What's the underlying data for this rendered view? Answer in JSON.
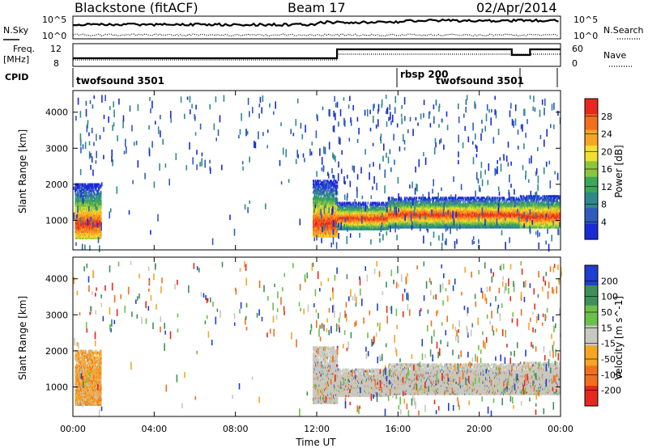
{
  "header": {
    "radar": "Blackstone (fitACF)",
    "beam": "Beam 17",
    "date": "02/Apr/2014"
  },
  "top_panels": {
    "nsky_label": "N.Sky",
    "nsearch_label": "N.Search",
    "count_ticks": [
      "10^5",
      "10^0"
    ],
    "freq_label_1": "Freq.",
    "freq_label_2": "[MHz]",
    "freq_ticks": [
      "12",
      "8"
    ],
    "nave_label": "Nave",
    "nave_ticks": [
      "60",
      "0"
    ],
    "cpid_label": "CPID"
  },
  "cpid_segments": [
    {
      "name": "twofsound 3501",
      "start": 0,
      "end": 16
    },
    {
      "name": "rbsp 200",
      "start": 16,
      "end": 16
    },
    {
      "name": "twofsound 3501",
      "start": 16,
      "end": 24
    }
  ],
  "colors": {
    "power_scale": [
      "#1a2bd6",
      "#2f5bbf",
      "#2e8a8a",
      "#3fa55a",
      "#8cc63f",
      "#f0e030",
      "#f5a623",
      "#f07020",
      "#e8281e"
    ],
    "velocity_scale": [
      "#1f3fd0",
      "#3f8f5a",
      "#6cc04a",
      "#c8c8c0",
      "#f5a623",
      "#f07020",
      "#e8281e"
    ]
  },
  "chart_data": [
    {
      "type": "heatmap",
      "name": "power",
      "xlabel": "Time UT",
      "ylabel": "Slant Range [km]",
      "xlim": [
        0,
        24
      ],
      "ylim": [
        180,
        4600
      ],
      "xticks": [
        "00:00",
        "04:00",
        "08:00",
        "12:00",
        "16:00",
        "20:00",
        "00:00"
      ],
      "yticks": [
        1000,
        2000,
        3000,
        4000
      ],
      "colorbar": {
        "label": "Power [dB]",
        "ticks": [
          4,
          8,
          12,
          16,
          20,
          24,
          28
        ],
        "range": [
          0,
          30
        ]
      },
      "bands": [
        {
          "t_start": 0.1,
          "t_end": 1.4,
          "r_low": 600,
          "r_peak": 900,
          "r_high": 2000
        },
        {
          "t_start": 11.8,
          "t_end": 13.0,
          "r_low": 650,
          "r_peak": 900,
          "r_high": 2100
        },
        {
          "t_start": 13.0,
          "t_end": 15.5,
          "r_low": 850,
          "r_peak": 1050,
          "r_high": 1500
        },
        {
          "t_start": 15.5,
          "t_end": 22.0,
          "r_low": 900,
          "r_peak": 1150,
          "r_high": 1650
        },
        {
          "t_start": 22.0,
          "t_end": 24.0,
          "r_low": 900,
          "r_peak": 1100,
          "r_high": 1700
        }
      ]
    },
    {
      "type": "heatmap",
      "name": "velocity",
      "xlabel": "Time UT",
      "ylabel": "Slant Range [km]",
      "xlim": [
        0,
        24
      ],
      "ylim": [
        180,
        4600
      ],
      "xticks": [
        "00:00",
        "04:00",
        "08:00",
        "12:00",
        "16:00",
        "20:00",
        "00:00"
      ],
      "yticks": [
        1000,
        2000,
        3000,
        4000
      ],
      "colorbar": {
        "label": "Velocity [m s^-1]",
        "ticks": [
          200,
          100,
          50,
          15,
          -15,
          -50,
          -100,
          -200
        ]
      }
    }
  ]
}
